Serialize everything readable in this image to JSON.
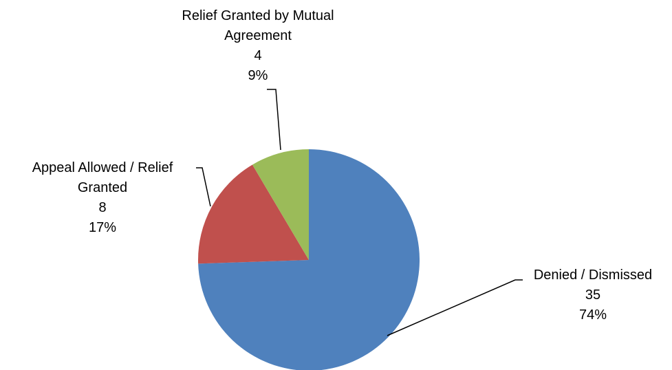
{
  "chart_data": {
    "type": "pie",
    "title": "",
    "start_angle_deg": 0,
    "direction": "clockwise",
    "legend": "none",
    "slices": [
      {
        "category_lines": [
          "Denied / Dismissed"
        ],
        "value": 35,
        "value_label": "35",
        "percent": 74,
        "percent_label": "74%",
        "color": "#4F81BD"
      },
      {
        "category_lines": [
          "Appeal Allowed / Relief",
          "Granted"
        ],
        "value": 8,
        "value_label": "8",
        "percent": 17,
        "percent_label": "17%",
        "color": "#C0504D"
      },
      {
        "category_lines": [
          "Relief Granted by Mutual",
          "Agreement"
        ],
        "value": 4,
        "value_label": "4",
        "percent": 9,
        "percent_label": "9%",
        "color": "#9BBB59"
      }
    ]
  }
}
